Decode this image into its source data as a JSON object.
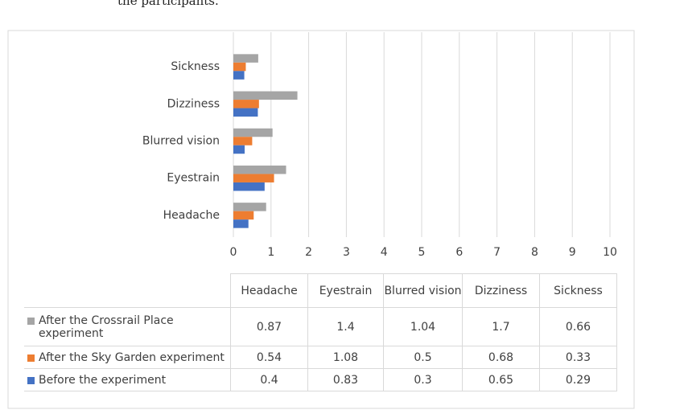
{
  "caption": "the participants.",
  "chart_data": {
    "type": "bar",
    "orientation": "horizontal",
    "categories": [
      "Headache",
      "Eyestrain",
      "Blurred vision",
      "Dizziness",
      "Sickness"
    ],
    "series": [
      {
        "name": "After the Crossrail Place experiment",
        "color": "#a5a5a5",
        "values": [
          0.87,
          1.4,
          1.04,
          1.7,
          0.66
        ]
      },
      {
        "name": "After the Sky Garden experiment",
        "color": "#ed7d31",
        "values": [
          0.54,
          1.08,
          0.5,
          0.68,
          0.33
        ]
      },
      {
        "name": "Before the experiment",
        "color": "#4472c4",
        "values": [
          0.4,
          0.83,
          0.3,
          0.65,
          0.29
        ]
      }
    ],
    "xlim": [
      0,
      10
    ],
    "xticks": [
      0,
      1,
      2,
      3,
      4,
      5,
      6,
      7,
      8,
      9,
      10
    ],
    "grid": true,
    "data_table": true
  }
}
